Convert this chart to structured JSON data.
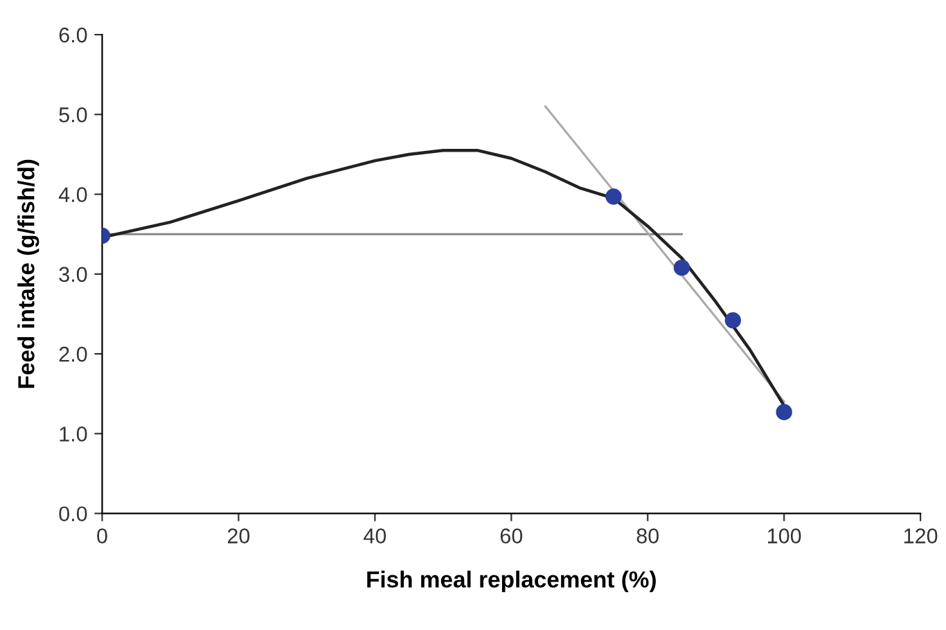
{
  "chart_data": {
    "type": "scatter",
    "xlabel": "Fish meal replacement (%)",
    "ylabel": "Feed intake (g/fish/d)",
    "xlim": [
      0,
      120
    ],
    "xticks": [
      0,
      20,
      40,
      60,
      80,
      100,
      120
    ],
    "ylim": [
      0,
      6
    ],
    "yticks": [
      {
        "value": 0,
        "label": "0.0"
      },
      {
        "value": 1,
        "label": "1.0"
      },
      {
        "value": 2,
        "label": "2.0"
      },
      {
        "value": 3,
        "label": "3.0"
      },
      {
        "value": 4,
        "label": "4.0"
      },
      {
        "value": 5,
        "label": "5.0"
      },
      {
        "value": 6,
        "label": "6.0"
      }
    ],
    "grid": false,
    "legend": false,
    "series": [
      {
        "type": "line",
        "color": "#888888",
        "marker": "none",
        "x": [
          0,
          85
        ],
        "values": [
          3.5,
          3.5
        ]
      },
      {
        "type": "line",
        "color": "#aaaaaa",
        "marker": "none",
        "x": [
          65,
          100
        ],
        "values": [
          5.1,
          1.4
        ]
      },
      {
        "type": "line",
        "color": "#222222",
        "marker": "none",
        "x": [
          0,
          10,
          20,
          30,
          40,
          45,
          50,
          55,
          60,
          65,
          70,
          75,
          80,
          85,
          90,
          95,
          100
        ],
        "values": [
          3.46,
          3.65,
          3.92,
          4.2,
          4.42,
          4.5,
          4.55,
          4.55,
          4.45,
          4.28,
          4.08,
          3.95,
          3.6,
          3.2,
          2.65,
          2.05,
          1.35
        ]
      },
      {
        "color": "#2b3f9e",
        "marker": "circle",
        "x": [
          0,
          75,
          85,
          92.5,
          100
        ],
        "values": [
          3.48,
          3.97,
          3.08,
          2.42,
          1.27
        ]
      }
    ]
  }
}
